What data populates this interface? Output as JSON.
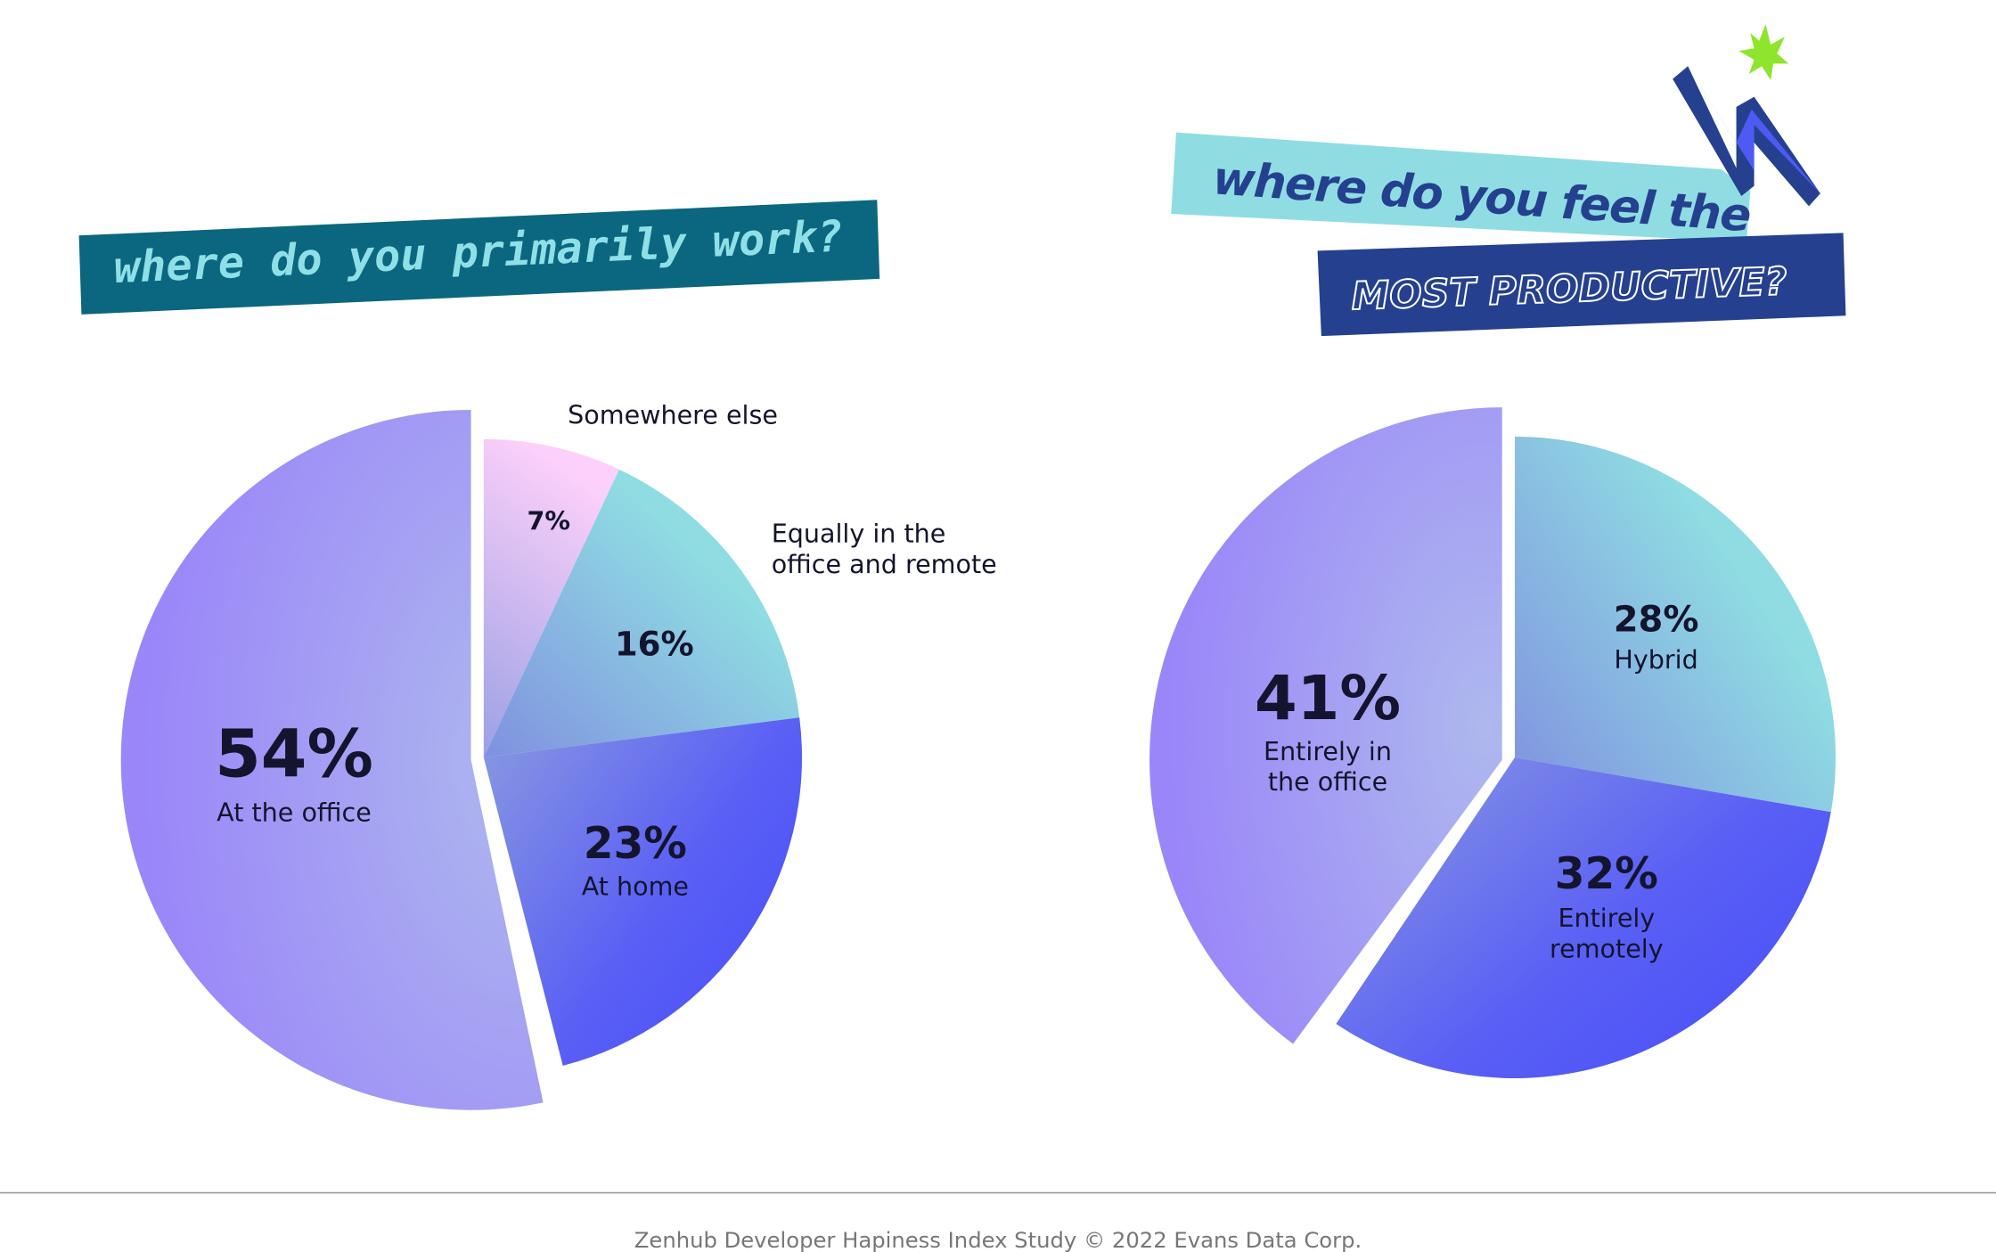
{
  "chart_data": [
    {
      "type": "pie",
      "title": "where do you primarily work?",
      "slices": [
        {
          "label": "Somewhere else",
          "value": 7,
          "value_label": "7%",
          "label_position": "outside"
        },
        {
          "label": "Equally in the office and remote",
          "label_lines": [
            "Equally in the",
            "office and remote"
          ],
          "value": 16,
          "value_label": "16%",
          "label_position": "outside"
        },
        {
          "label": "At home",
          "value": 23,
          "value_label": "23%",
          "label_position": "inside"
        },
        {
          "label": "At the office",
          "value": 54,
          "value_label": "54%",
          "label_position": "inside",
          "exploded": true
        }
      ]
    },
    {
      "type": "pie",
      "title_line1": "where do you feel the",
      "title_line2": "MOST PRODUCTIVE?",
      "slices": [
        {
          "label": "Hybrid",
          "value": 28,
          "value_label": "28%"
        },
        {
          "label": "Entirely remotely",
          "label_lines": [
            "Entirely",
            "remotely"
          ],
          "value": 32,
          "value_label": "32%"
        },
        {
          "label": "Entirely in the office",
          "label_lines": [
            "Entirely in",
            "the office"
          ],
          "value": 41,
          "value_label": "41%",
          "exploded": true
        }
      ]
    }
  ],
  "colors": {
    "office": "#9b8af8",
    "home": "#4b55f5",
    "equally": "#8fdde2",
    "elsewhere": "#fcd0f8",
    "banner_teal": "#0b6680",
    "banner_cyan": "#8fdde2",
    "banner_navy": "#25408f",
    "star_green": "#8ee52b"
  },
  "decorations": [
    "lightning-bolt-icon",
    "star-burst-icon"
  ],
  "footer": "Zenhub Developer Hapiness Index Study © 2022 Evans Data Corp."
}
